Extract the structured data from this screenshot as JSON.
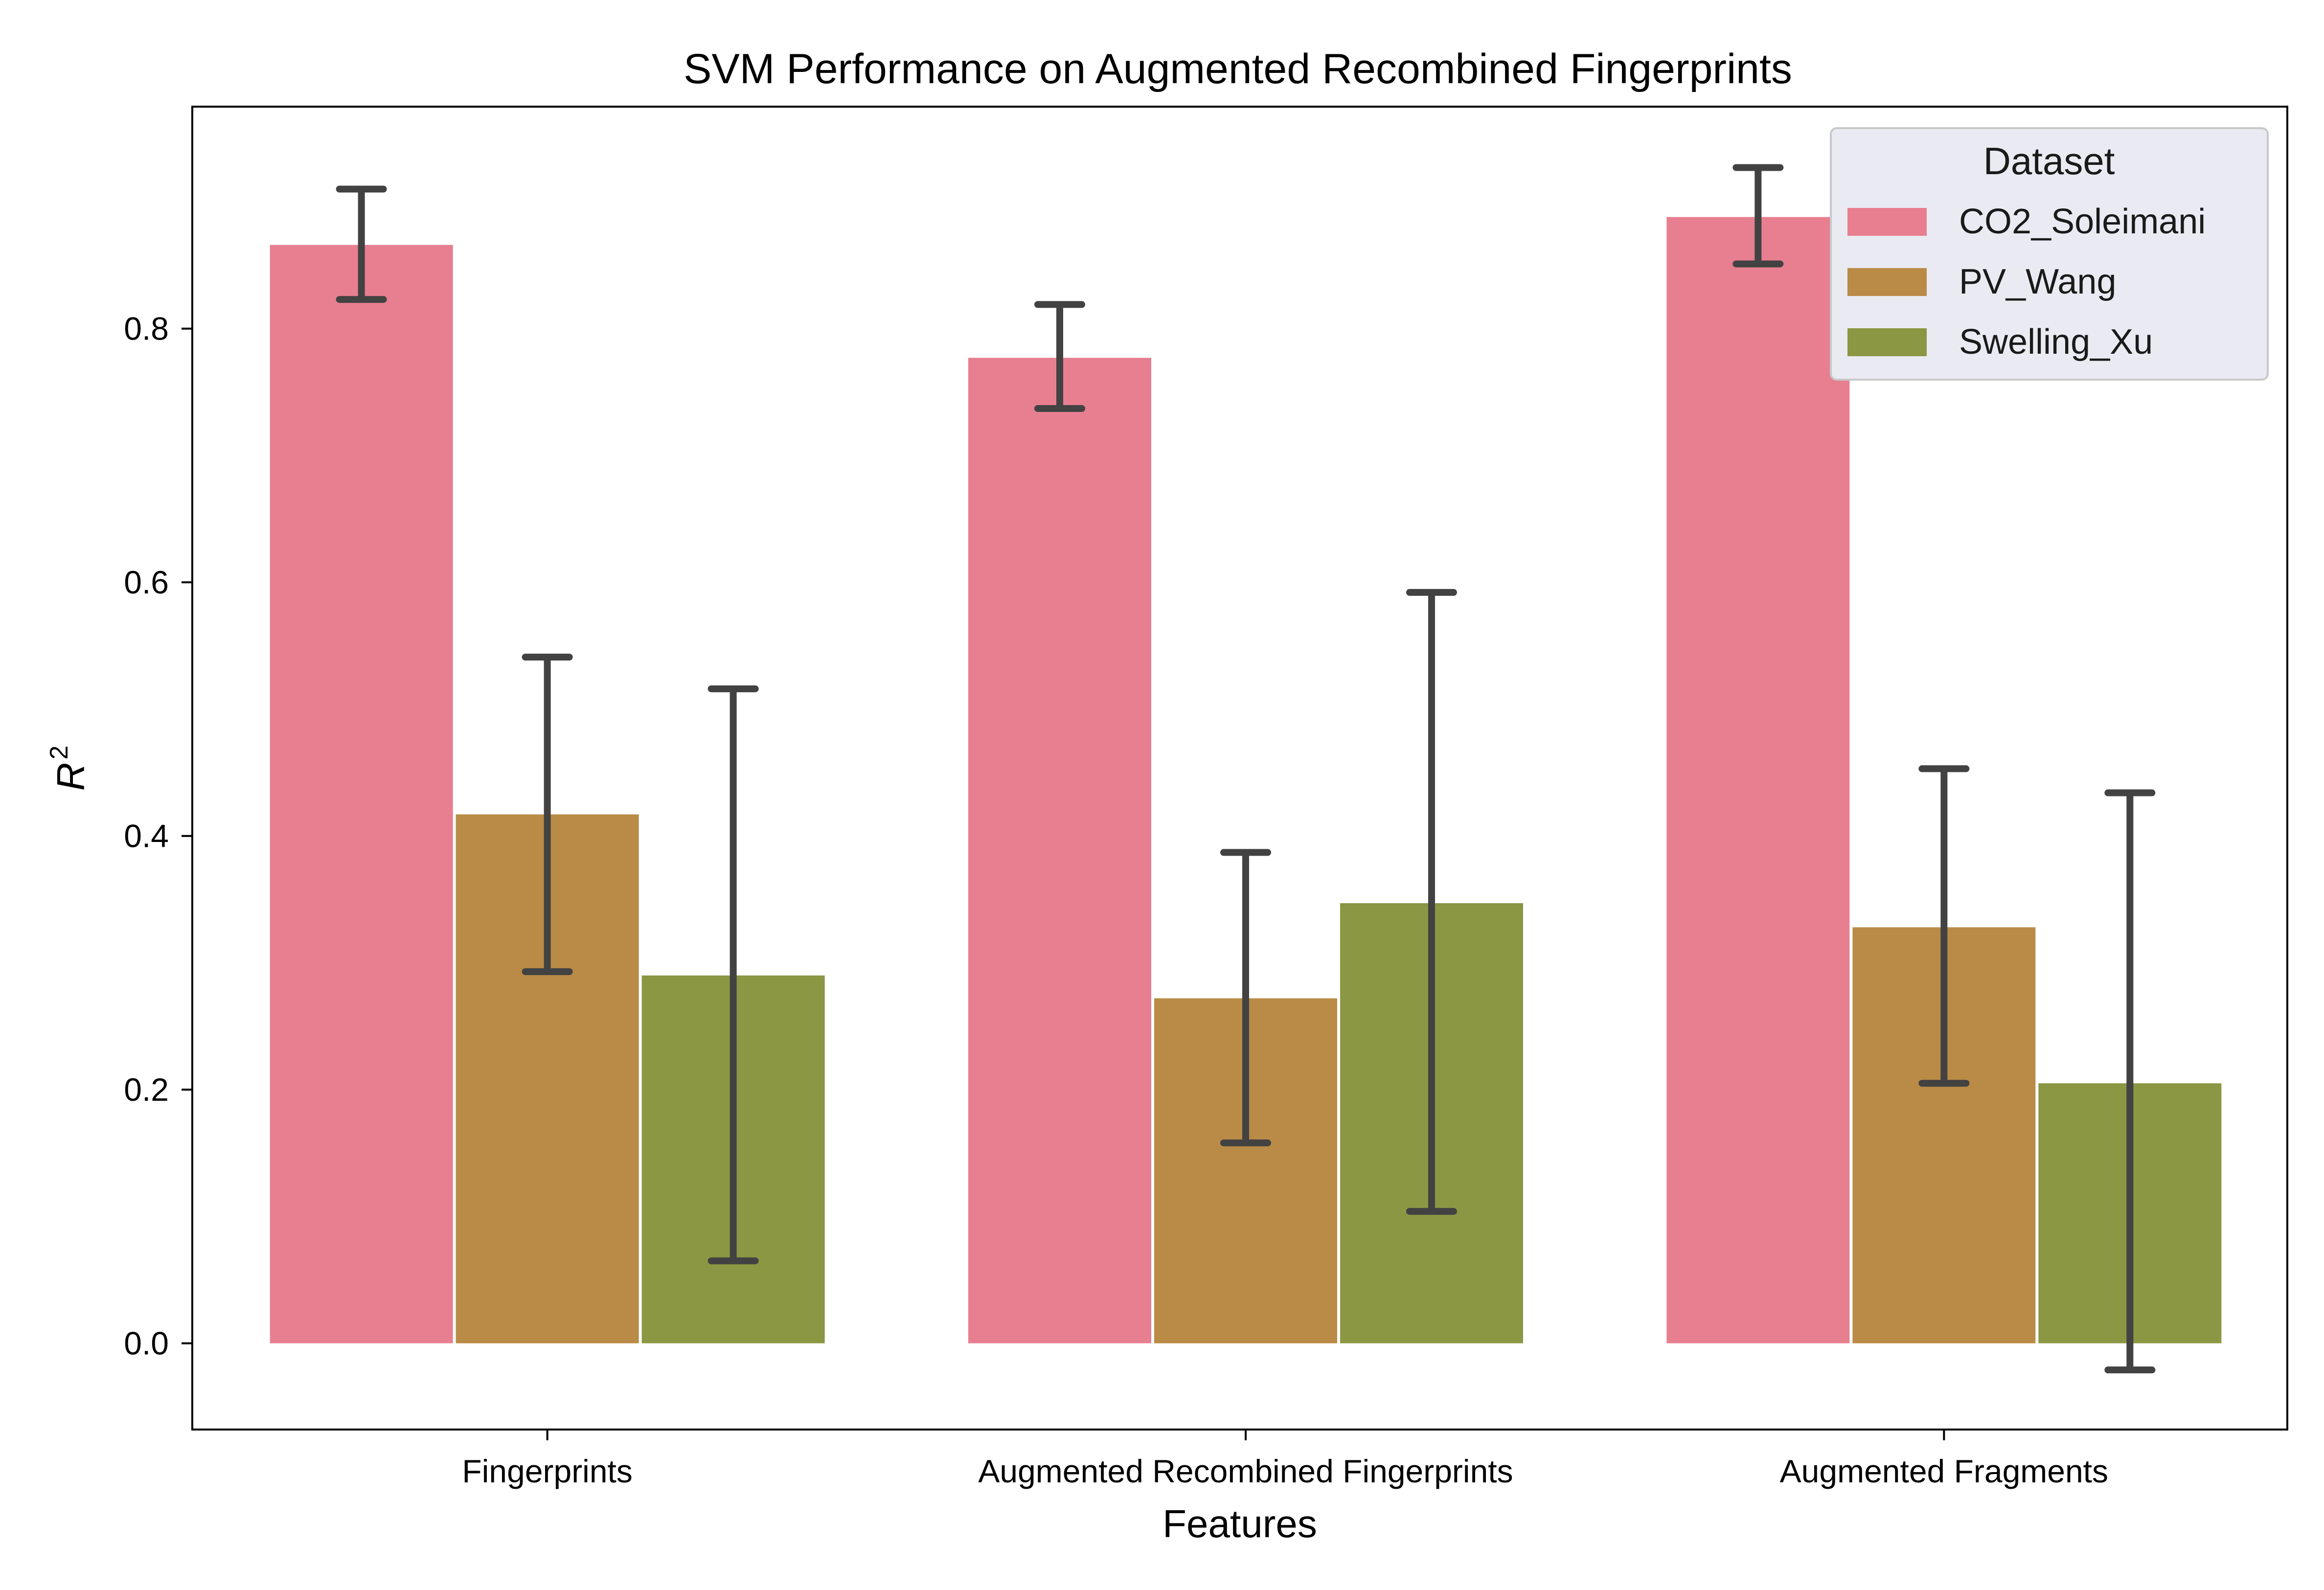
{
  "chart_data": {
    "type": "bar",
    "title": "SVM Performance on Augmented Recombined Fingerprints",
    "xlabel": "Features",
    "ylabel": "R",
    "ylabel_superscript": "2",
    "categories": [
      "Fingerprints",
      "Augmented Recombined Fingerprints",
      "Augmented Fragments"
    ],
    "series": [
      {
        "name": "CO2_Soleimani",
        "color": "#e77f91",
        "values": [
          0.866,
          0.777,
          0.888
        ],
        "err_low": [
          0.823,
          0.737,
          0.851
        ],
        "err_high": [
          0.91,
          0.819,
          0.927
        ]
      },
      {
        "name": "PV_Wang",
        "color": "#ba8b46",
        "values": [
          0.417,
          0.272,
          0.328
        ],
        "err_low": [
          0.293,
          0.158,
          0.205
        ],
        "err_high": [
          0.541,
          0.387,
          0.453
        ]
      },
      {
        "name": "Swelling_Xu",
        "color": "#8b9742",
        "values": [
          0.29,
          0.347,
          0.205
        ],
        "err_low": [
          0.065,
          0.104,
          -0.021
        ],
        "err_high": [
          0.516,
          0.592,
          0.434
        ]
      }
    ],
    "ylim": [
      -0.068,
      0.975
    ],
    "yticks": [
      0.0,
      0.2,
      0.4,
      0.6,
      0.8
    ],
    "ytick_labels": [
      "0.0",
      "0.2",
      "0.4",
      "0.6",
      "0.8"
    ],
    "legend": {
      "title": "Dataset",
      "placement": "top-right"
    },
    "errorbar_color": "#424242",
    "grid": false
  }
}
